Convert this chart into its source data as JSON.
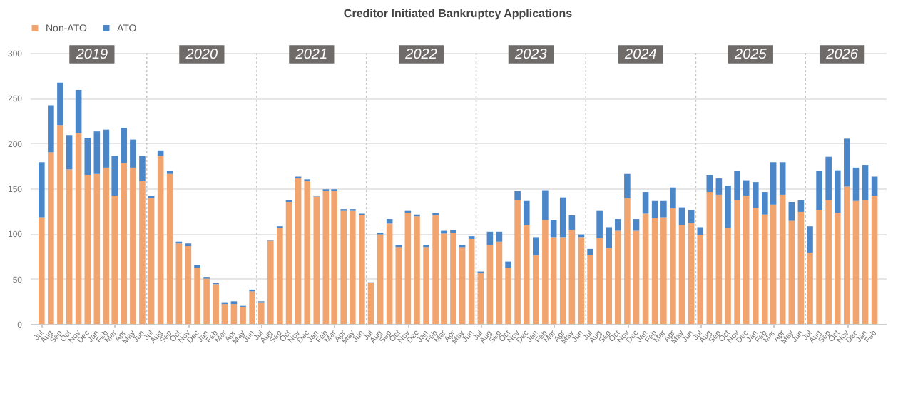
{
  "chart_data": {
    "type": "bar",
    "title": "Creditor Initiated Bankruptcy Applications",
    "stacked": true,
    "x": [
      "2018-07",
      "2018-08",
      "2018-09",
      "2018-10",
      "2018-11",
      "2018-12",
      "2019-01",
      "2019-02",
      "2019-03",
      "2019-04",
      "2019-05",
      "2019-06",
      "2019-07",
      "2019-08",
      "2019-09",
      "2019-10",
      "2019-11",
      "2019-12",
      "2020-01",
      "2020-02",
      "2020-03",
      "2020-04",
      "2020-05",
      "2020-06",
      "2020-07",
      "2020-08",
      "2020-09",
      "2020-10",
      "2020-11",
      "2020-12",
      "2021-01",
      "2021-02",
      "2021-03",
      "2021-04",
      "2021-05",
      "2021-06",
      "2021-07",
      "2021-08",
      "2021-09",
      "2021-10",
      "2021-11",
      "2021-12",
      "2022-01",
      "2022-02",
      "2022-03",
      "2022-04",
      "2022-05",
      "2022-06",
      "2022-07",
      "2022-08",
      "2022-09",
      "2022-10",
      "2022-11",
      "2022-12",
      "2023-01",
      "2023-02",
      "2023-03",
      "2023-04",
      "2023-05",
      "2023-06",
      "2023-07",
      "2023-08",
      "2023-09",
      "2023-10",
      "2023-11",
      "2023-12",
      "2024-01",
      "2024-02",
      "2024-03",
      "2024-04",
      "2024-05",
      "2024-06",
      "2024-07",
      "2024-08",
      "2024-09",
      "2024-10",
      "2024-11",
      "2024-12",
      "2025-01",
      "2025-02",
      "2025-03",
      "2025-04",
      "2025-05",
      "2025-06",
      "2025-07",
      "2025-08",
      "2025-09",
      "2025-10",
      "2025-11",
      "2025-12",
      "2026-01",
      "2026-02"
    ],
    "xlim": [
      "2018-06-16",
      "2026-02-15"
    ],
    "xticks": [
      {
        "value": "2018-07",
        "label": "Jul"
      },
      {
        "value": "2018-08",
        "label": "Aug"
      },
      {
        "value": "2018-09",
        "label": "Sep"
      },
      {
        "value": "2018-10",
        "label": "Oct"
      },
      {
        "value": "2018-11",
        "label": "Nov"
      },
      {
        "value": "2018-12",
        "label": "Dec"
      },
      {
        "value": "2019-01",
        "label": "Jan"
      },
      {
        "value": "2019-02",
        "label": "Feb"
      },
      {
        "value": "2019-03",
        "label": "Mar"
      },
      {
        "value": "2019-04",
        "label": "Apr"
      },
      {
        "value": "2019-05",
        "label": "May"
      },
      {
        "value": "2019-06",
        "label": "Jun"
      },
      {
        "value": "2019-07",
        "label": "Jul"
      },
      {
        "value": "2019-08",
        "label": "Aug"
      },
      {
        "value": "2019-09",
        "label": "Sep"
      },
      {
        "value": "2019-10",
        "label": "Oct"
      },
      {
        "value": "2019-11",
        "label": "Nov"
      },
      {
        "value": "2019-12",
        "label": "Dec"
      },
      {
        "value": "2020-01",
        "label": "Jan"
      },
      {
        "value": "2020-02",
        "label": "Feb"
      },
      {
        "value": "2020-03",
        "label": "Mar"
      },
      {
        "value": "2020-04",
        "label": "Apr"
      },
      {
        "value": "2020-05",
        "label": "May"
      },
      {
        "value": "2020-06",
        "label": "Jun"
      },
      {
        "value": "2020-07",
        "label": "Jul"
      },
      {
        "value": "2020-08",
        "label": "Aug"
      },
      {
        "value": "2020-09",
        "label": "Sep"
      },
      {
        "value": "2020-10",
        "label": "Oct"
      },
      {
        "value": "2020-11",
        "label": "Nov"
      },
      {
        "value": "2020-12",
        "label": "Dec"
      },
      {
        "value": "2021-01",
        "label": "Jan"
      },
      {
        "value": "2021-02",
        "label": "Feb"
      },
      {
        "value": "2021-03",
        "label": "Mar"
      },
      {
        "value": "2021-04",
        "label": "Apr"
      },
      {
        "value": "2021-05",
        "label": "May"
      },
      {
        "value": "2021-06",
        "label": "Jun"
      },
      {
        "value": "2021-07",
        "label": "Jul"
      },
      {
        "value": "2021-08",
        "label": "Aug"
      },
      {
        "value": "2021-09",
        "label": "Sep"
      },
      {
        "value": "2021-10",
        "label": "Oct"
      },
      {
        "value": "2021-11",
        "label": "Nov"
      },
      {
        "value": "2021-12",
        "label": "Dec"
      },
      {
        "value": "2022-01",
        "label": "Jan"
      },
      {
        "value": "2022-02",
        "label": "Feb"
      },
      {
        "value": "2022-03",
        "label": "Mar"
      },
      {
        "value": "2022-04",
        "label": "Apr"
      },
      {
        "value": "2022-05",
        "label": "May"
      },
      {
        "value": "2022-06",
        "label": "Jun"
      },
      {
        "value": "2022-07",
        "label": "Jul"
      },
      {
        "value": "2022-08",
        "label": "Aug"
      },
      {
        "value": "2022-09",
        "label": "Sep"
      },
      {
        "value": "2022-10",
        "label": "Oct"
      },
      {
        "value": "2022-11",
        "label": "Nov"
      },
      {
        "value": "2022-12",
        "label": "Dec"
      },
      {
        "value": "2023-01",
        "label": "Jan"
      },
      {
        "value": "2023-02",
        "label": "Feb"
      },
      {
        "value": "2023-03",
        "label": "Mar"
      },
      {
        "value": "2023-04",
        "label": "Apr"
      },
      {
        "value": "2023-05",
        "label": "May"
      },
      {
        "value": "2023-06",
        "label": "Jun"
      },
      {
        "value": "2023-07",
        "label": "Jul"
      },
      {
        "value": "2023-08",
        "label": "Aug"
      },
      {
        "value": "2023-09",
        "label": "Sep"
      },
      {
        "value": "2023-10",
        "label": "Oct"
      },
      {
        "value": "2023-11",
        "label": "Nov"
      },
      {
        "value": "2023-12",
        "label": "Dec"
      },
      {
        "value": "2024-01",
        "label": "Jan"
      },
      {
        "value": "2024-02",
        "label": "Feb"
      },
      {
        "value": "2024-03",
        "label": "Mar"
      },
      {
        "value": "2024-04",
        "label": "Apr"
      },
      {
        "value": "2024-05",
        "label": "May"
      },
      {
        "value": "2024-06",
        "label": "Jun"
      },
      {
        "value": "2024-07",
        "label": "Jul"
      },
      {
        "value": "2024-08",
        "label": "Aug"
      },
      {
        "value": "2024-09",
        "label": "Sep"
      },
      {
        "value": "2024-10",
        "label": "Oct"
      },
      {
        "value": "2024-11",
        "label": "Nov"
      },
      {
        "value": "2024-12",
        "label": "Dec"
      },
      {
        "value": "2025-01",
        "label": "Jan"
      },
      {
        "value": "2025-02",
        "label": "Feb"
      },
      {
        "value": "2025-03",
        "label": "Mar"
      },
      {
        "value": "2025-04",
        "label": "Apr"
      },
      {
        "value": "2025-05",
        "label": "May"
      },
      {
        "value": "2025-06",
        "label": "Jun"
      },
      {
        "value": "2025-07",
        "label": "Jul"
      },
      {
        "value": "2025-08",
        "label": "Aug"
      },
      {
        "value": "2025-09",
        "label": "Sep"
      },
      {
        "value": "2025-10",
        "label": "Oct"
      },
      {
        "value": "2025-11",
        "label": "Nov"
      },
      {
        "value": "2025-12",
        "label": "Dec"
      },
      {
        "value": "2026-01",
        "label": "Jan"
      },
      {
        "value": "2026-02",
        "label": "Feb"
      }
    ],
    "ylim": [
      0,
      300
    ],
    "yticks": [
      0,
      50,
      100,
      150,
      200,
      250,
      300
    ],
    "grid": "y",
    "legend": "top",
    "series": [
      {
        "name": "Non-ATO",
        "color": "#f2a46f",
        "values": [
          118,
          190,
          220,
          171,
          211,
          165,
          166,
          173,
          142,
          178,
          173,
          158,
          139,
          186,
          166,
          89,
          86,
          62,
          50,
          44,
          22,
          22,
          19,
          36,
          24,
          92,
          106,
          135,
          161,
          158,
          141,
          147,
          147,
          125,
          125,
          120,
          45,
          99,
          111,
          85,
          123,
          119,
          85,
          120,
          100,
          101,
          85,
          94,
          56,
          87,
          91,
          62,
          137,
          109,
          76,
          115,
          96,
          96,
          104,
          96,
          76,
          95,
          84,
          103,
          139,
          103,
          122,
          117,
          118,
          128,
          109,
          112,
          98,
          146,
          143,
          106,
          137,
          142,
          128,
          121,
          132,
          143,
          114,
          124,
          79,
          126,
          137,
          123,
          152,
          136,
          137,
          142
        ]
      },
      {
        "name": "ATO",
        "color": "#4a86c8",
        "values": [
          61,
          52,
          47,
          38,
          48,
          41,
          47,
          42,
          44,
          39,
          31,
          28,
          3,
          6,
          3,
          2,
          3,
          3,
          2,
          1,
          2,
          3,
          1,
          2,
          1,
          1,
          2,
          2,
          2,
          2,
          1,
          2,
          2,
          2,
          2,
          2,
          1,
          2,
          5,
          2,
          2,
          2,
          2,
          3,
          3,
          3,
          2,
          3,
          2,
          15,
          11,
          7,
          10,
          27,
          20,
          33,
          19,
          44,
          16,
          3,
          7,
          30,
          23,
          13,
          27,
          13,
          24,
          19,
          18,
          23,
          20,
          14,
          9,
          19,
          18,
          47,
          32,
          17,
          29,
          25,
          47,
          36,
          21,
          13,
          29,
          43,
          48,
          47,
          53,
          37,
          39,
          21
        ]
      }
    ],
    "ref_lines": [
      {
        "axis": "x",
        "value": "2019-06-16",
        "line_style": "dotted",
        "color": "#c8c8c8"
      },
      {
        "axis": "x",
        "value": "2020-06-16",
        "line_style": "dotted",
        "color": "#c8c8c8"
      },
      {
        "axis": "x",
        "value": "2021-06-16",
        "line_style": "dotted",
        "color": "#c8c8c8"
      },
      {
        "axis": "x",
        "value": "2022-06-16",
        "line_style": "dotted",
        "color": "#c8c8c8"
      },
      {
        "axis": "x",
        "value": "2023-06-16",
        "line_style": "dotted",
        "color": "#c8c8c8"
      },
      {
        "axis": "x",
        "value": "2024-06-16",
        "line_style": "dotted",
        "color": "#c8c8c8"
      },
      {
        "axis": "x",
        "value": "2025-06-16",
        "line_style": "dotted",
        "color": "#c8c8c8"
      }
    ],
    "annotations": [
      "2019",
      "2020",
      "2021",
      "2022",
      "2023",
      "2024",
      "2025",
      "2026"
    ]
  }
}
